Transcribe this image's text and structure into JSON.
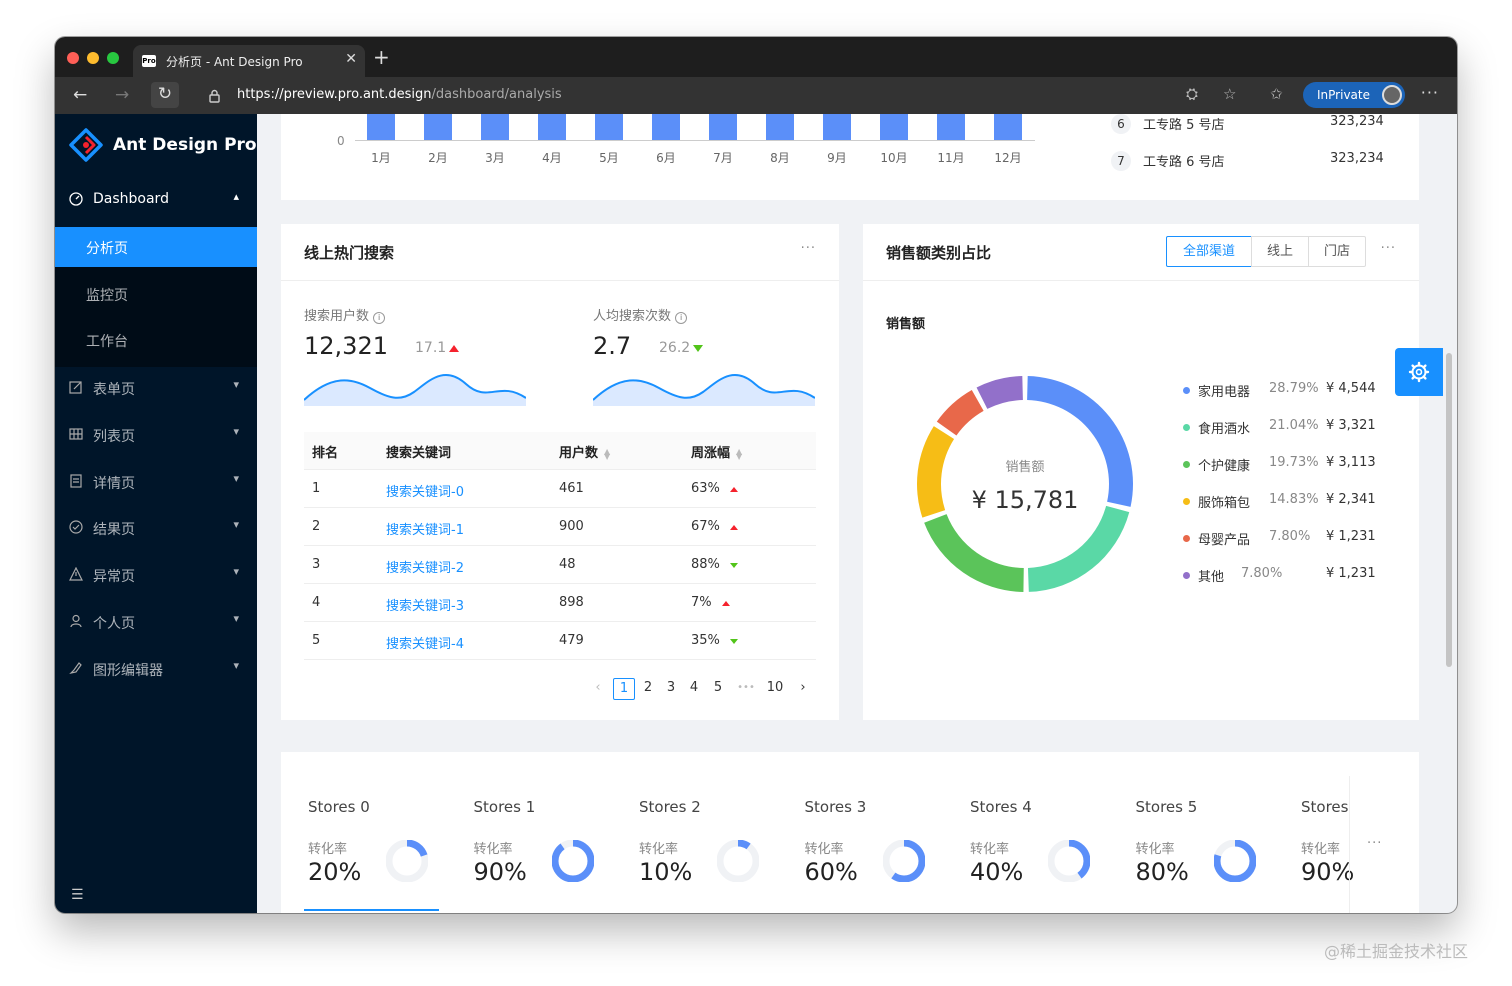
{
  "browser": {
    "tab_title": "分析页 - Ant Design Pro",
    "favicon_text": "Pro",
    "url_host": "https://preview.pro.ant.design",
    "url_path": "/dashboard/analysis",
    "inprivate_label": "InPrivate"
  },
  "sidebar": {
    "logo_text": "Ant Design Pro",
    "dashboard_label": "Dashboard",
    "sub_items": [
      "分析页",
      "监控页",
      "工作台"
    ],
    "items": [
      {
        "label": "表单页",
        "icon": "form-icon"
      },
      {
        "label": "列表页",
        "icon": "table-icon"
      },
      {
        "label": "详情页",
        "icon": "profile-icon"
      },
      {
        "label": "结果页",
        "icon": "check-circle-icon"
      },
      {
        "label": "异常页",
        "icon": "warning-icon"
      },
      {
        "label": "个人页",
        "icon": "user-icon"
      },
      {
        "label": "图形编辑器",
        "icon": "highlight-icon"
      }
    ]
  },
  "top_chart": {
    "y_zero": "0",
    "months": [
      "1月",
      "2月",
      "3月",
      "4月",
      "5月",
      "6月",
      "7月",
      "8月",
      "9月",
      "10月",
      "11月",
      "12月"
    ]
  },
  "ranking": [
    {
      "rank": "6",
      "name": "工专路 5 号店",
      "value": "323,234"
    },
    {
      "rank": "7",
      "name": "工专路 6 号店",
      "value": "323,234"
    }
  ],
  "hot_search": {
    "title": "线上热门搜索",
    "users_label": "搜索用户数",
    "users_value": "12,321",
    "users_change": "17.1",
    "avg_label": "人均搜索次数",
    "avg_value": "2.7",
    "avg_change": "26.2",
    "columns": [
      "排名",
      "搜索关键词",
      "用户数",
      "周涨幅"
    ],
    "rows": [
      {
        "rank": "1",
        "keyword": "搜索关键词-0",
        "users": "461",
        "change": "63%",
        "trend": "up"
      },
      {
        "rank": "2",
        "keyword": "搜索关键词-1",
        "users": "900",
        "change": "67%",
        "trend": "up"
      },
      {
        "rank": "3",
        "keyword": "搜索关键词-2",
        "users": "48",
        "change": "88%",
        "trend": "down"
      },
      {
        "rank": "4",
        "keyword": "搜索关键词-3",
        "users": "898",
        "change": "7%",
        "trend": "up"
      },
      {
        "rank": "5",
        "keyword": "搜索关键词-4",
        "users": "479",
        "change": "35%",
        "trend": "down"
      }
    ],
    "pagination": [
      "1",
      "2",
      "3",
      "4",
      "5",
      "•••",
      "10"
    ]
  },
  "sales_type": {
    "title": "销售额类别占比",
    "radio": [
      "全部渠道",
      "线上",
      "门店"
    ],
    "subtitle": "销售额",
    "center_label": "销售额",
    "center_value": "¥ 15,781",
    "legend": [
      {
        "name": "家用电器",
        "pct": "28.79%",
        "value": "¥ 4,544",
        "color": "#5b8ff9"
      },
      {
        "name": "食用酒水",
        "pct": "21.04%",
        "value": "¥ 3,321",
        "color": "#5ad8a6"
      },
      {
        "name": "个护健康",
        "pct": "19.73%",
        "value": "¥ 3,113",
        "color": "#5bc45a"
      },
      {
        "name": "服饰箱包",
        "pct": "14.83%",
        "value": "¥ 2,341",
        "color": "#f6bd16"
      },
      {
        "name": "母婴产品",
        "pct": "7.80%",
        "value": "¥ 1,231",
        "color": "#e8684a"
      },
      {
        "name": "其他",
        "pct": "7.80%",
        "value": "¥ 1,231",
        "color": "#9270ca"
      }
    ]
  },
  "stores": [
    {
      "name": "Stores 0",
      "label": "转化率",
      "rate": "20%",
      "fraction": 0.2
    },
    {
      "name": "Stores 1",
      "label": "转化率",
      "rate": "90%",
      "fraction": 0.9
    },
    {
      "name": "Stores 2",
      "label": "转化率",
      "rate": "10%",
      "fraction": 0.1
    },
    {
      "name": "Stores 3",
      "label": "转化率",
      "rate": "60%",
      "fraction": 0.6
    },
    {
      "name": "Stores 4",
      "label": "转化率",
      "rate": "40%",
      "fraction": 0.4
    },
    {
      "name": "Stores 5",
      "label": "转化率",
      "rate": "80%",
      "fraction": 0.8
    },
    {
      "name": "Stores",
      "label": "转化率",
      "rate": "90%",
      "fraction": 0.9
    }
  ],
  "watermark": "@稀土掘金技术社区"
}
